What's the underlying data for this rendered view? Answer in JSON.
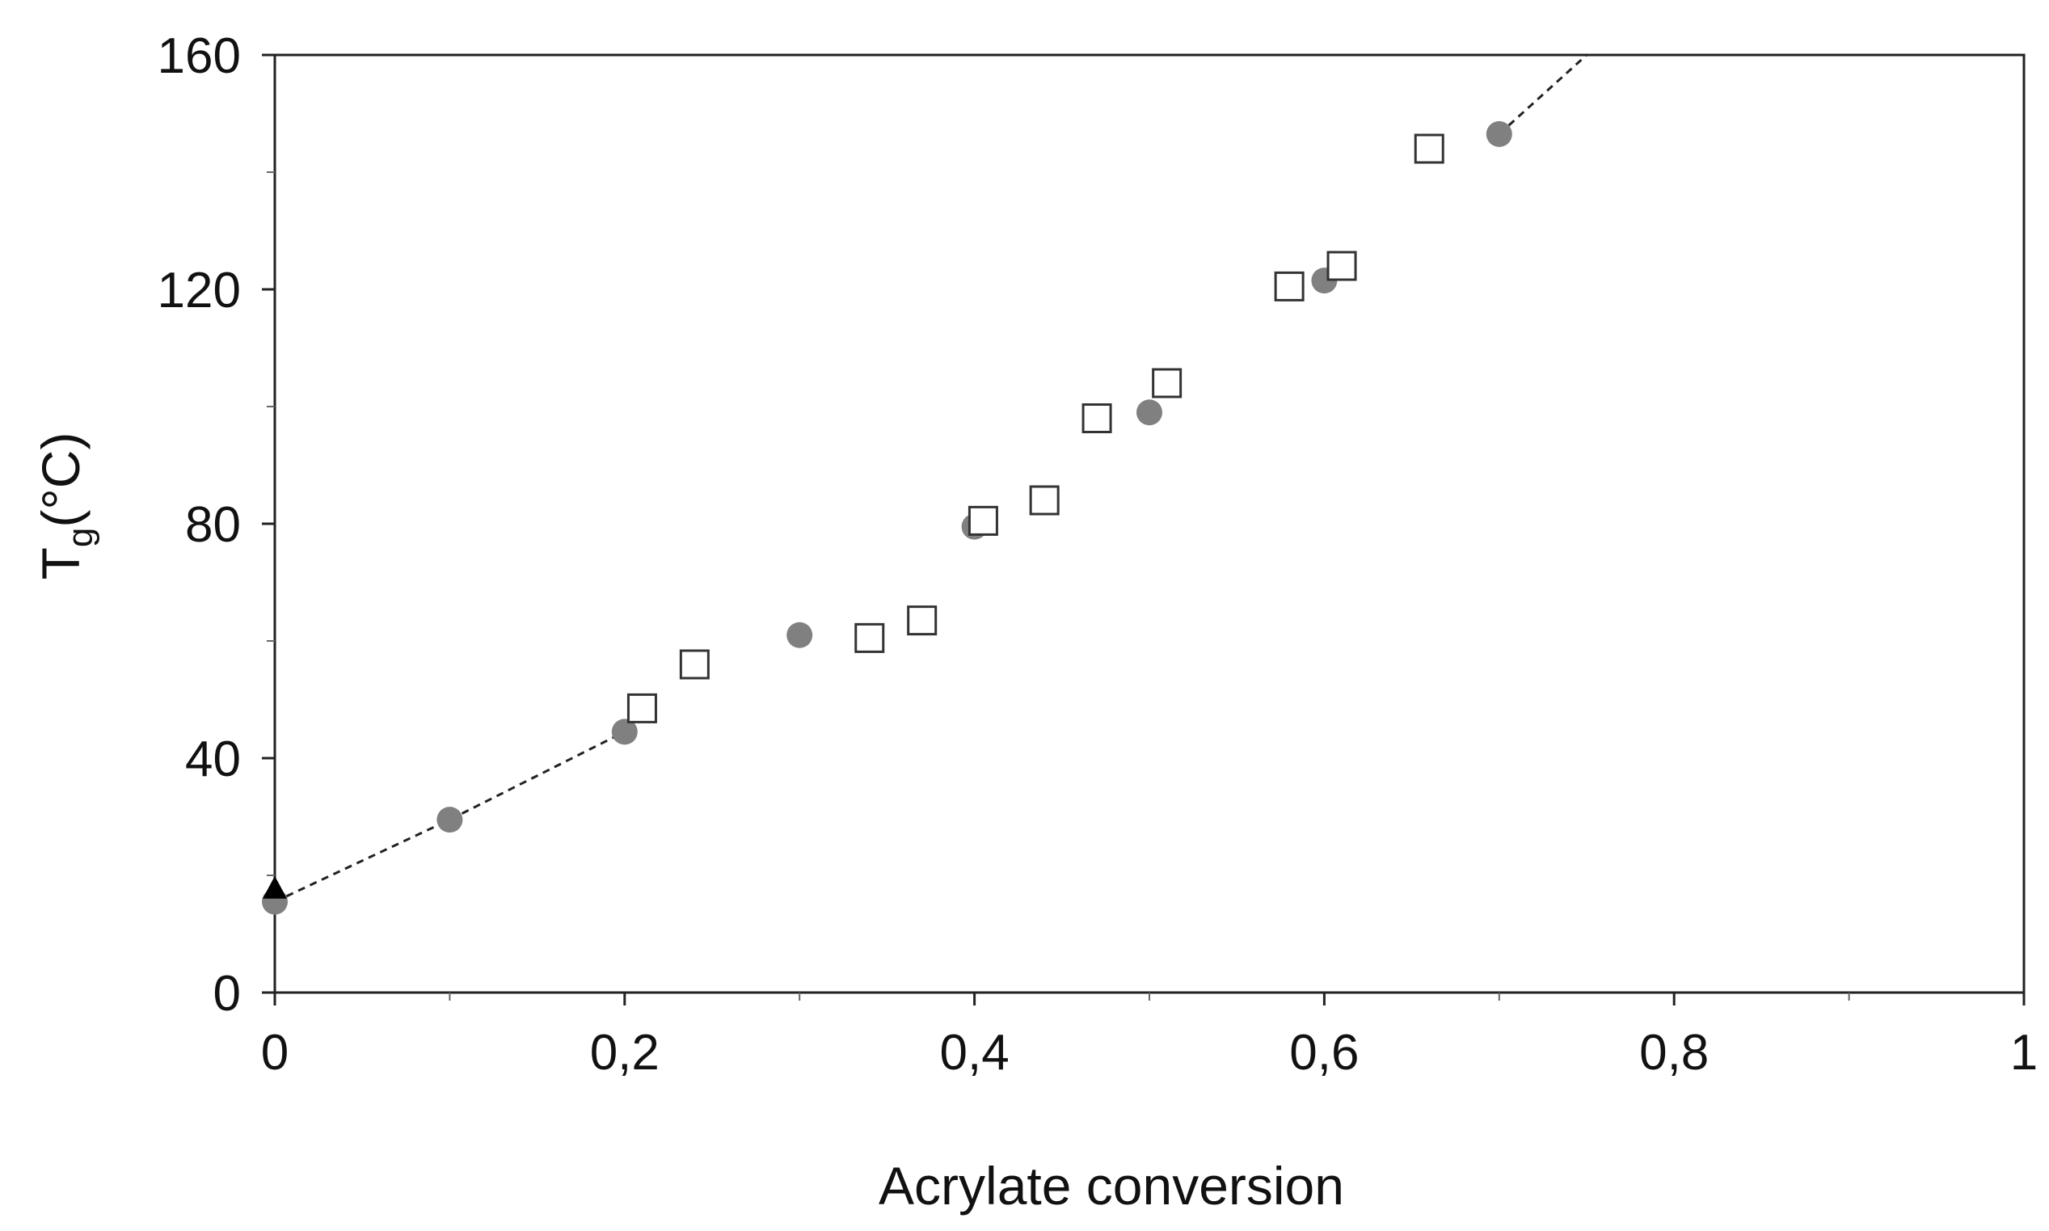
{
  "chart_data": {
    "type": "scatter",
    "title": "",
    "xlabel": "Acrylate conversion",
    "ylabel": {
      "main": "T",
      "sub": "g",
      "rest": "(°C)"
    },
    "xlim": [
      0,
      1
    ],
    "ylim": [
      0,
      160
    ],
    "x_major_ticks": [
      0,
      0.2,
      0.4,
      0.6,
      0.8,
      1
    ],
    "x_tick_labels": [
      "0",
      "0,2",
      "0,4",
      "0,6",
      "0,8",
      "1"
    ],
    "x_minor_ticks": [
      0.1,
      0.3,
      0.5,
      0.7,
      0.9
    ],
    "y_major_ticks": [
      0,
      40,
      80,
      120,
      160
    ],
    "y_tick_labels": [
      "0",
      "40",
      "80",
      "120",
      "160"
    ],
    "y_minor_ticks": [
      20,
      60,
      100,
      140
    ],
    "grid": false,
    "legend": "none",
    "series": [
      {
        "marker": "circle",
        "color": "#808080",
        "points": [
          {
            "x": 0,
            "y": 15.5
          },
          {
            "x": 0.1,
            "y": 29.5
          },
          {
            "x": 0.2,
            "y": 44.5
          },
          {
            "x": 0.3,
            "y": 61
          },
          {
            "x": 0.4,
            "y": 79.5
          },
          {
            "x": 0.5,
            "y": 99
          },
          {
            "x": 0.6,
            "y": 121.5
          },
          {
            "x": 0.7,
            "y": 146.5
          }
        ]
      },
      {
        "marker": "square-open",
        "color": "#333333",
        "points": [
          {
            "x": 0.21,
            "y": 48.5
          },
          {
            "x": 0.24,
            "y": 56
          },
          {
            "x": 0.34,
            "y": 60.5
          },
          {
            "x": 0.37,
            "y": 63.5
          },
          {
            "x": 0.405,
            "y": 80.5
          },
          {
            "x": 0.44,
            "y": 84
          },
          {
            "x": 0.47,
            "y": 98
          },
          {
            "x": 0.51,
            "y": 104
          },
          {
            "x": 0.58,
            "y": 120.5
          },
          {
            "x": 0.61,
            "y": 124
          },
          {
            "x": 0.66,
            "y": 144
          }
        ]
      },
      {
        "marker": "triangle",
        "color": "#000000",
        "points": [
          {
            "x": 0,
            "y": 17.5
          }
        ]
      }
    ],
    "dashed_lines": [
      {
        "color": "#222222",
        "points": [
          {
            "x": 0,
            "y": 15.5
          },
          {
            "x": 0.1,
            "y": 29.5
          },
          {
            "x": 0.2,
            "y": 44.5
          }
        ]
      },
      {
        "color": "#222222",
        "points": [
          {
            "x": 0.7,
            "y": 146.5
          },
          {
            "x": 0.75,
            "y": 160
          }
        ]
      }
    ]
  }
}
